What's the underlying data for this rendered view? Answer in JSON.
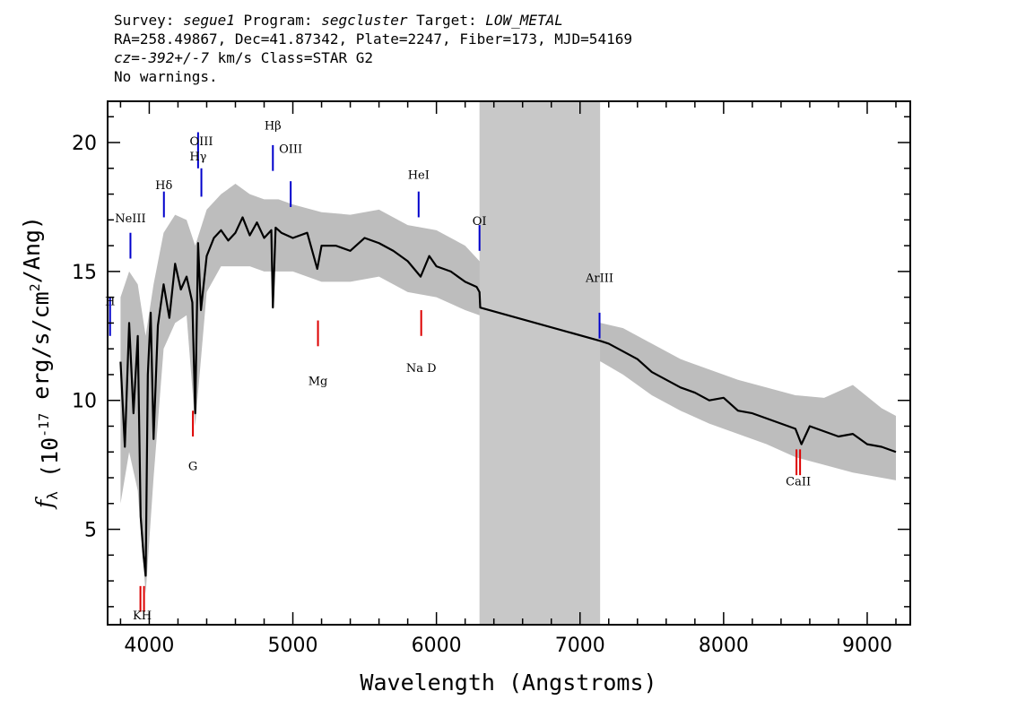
{
  "header": {
    "line1": {
      "survey_label": "Survey: ",
      "survey": "segue1",
      "program_label": " Program: ",
      "program": "segcluster",
      "target_label": " Target: ",
      "target": "LOW_METAL"
    },
    "line2": "RA=258.49867, Dec=41.87342, Plate=2247, Fiber=173, MJD=54169",
    "line3": {
      "cz": "cz=-392+/-7",
      "rest": " km/s Class=STAR G2"
    },
    "line4": "No warnings."
  },
  "chart_data": {
    "type": "line",
    "xlabel": "Wavelength (Angstroms)",
    "ylabel": "f_λ (10^-17 erg/s/cm^2/Ang)",
    "xlim": [
      3710,
      9300
    ],
    "ylim": [
      1.3,
      21.6
    ],
    "x_ticks": [
      4000,
      5000,
      6000,
      7000,
      8000,
      9000
    ],
    "y_ticks": [
      5,
      10,
      15,
      20
    ],
    "masked_region": [
      6300,
      7140
    ],
    "series": [
      {
        "style": "black-line",
        "x": [
          3800,
          3830,
          3860,
          3890,
          3920,
          3940,
          3960,
          3975,
          3990,
          4010,
          4030,
          4060,
          4100,
          4140,
          4180,
          4220,
          4260,
          4300,
          4320,
          4340,
          4360,
          4400,
          4450,
          4500,
          4550,
          4600,
          4650,
          4700,
          4750,
          4800,
          4850,
          4861,
          4880,
          4920,
          5000,
          5100,
          5170,
          5200,
          5300,
          5400,
          5500,
          5600,
          5700,
          5800,
          5890,
          5950,
          6000,
          6100,
          6200,
          6280,
          6300,
          6305,
          7145,
          7200,
          7300,
          7400,
          7500,
          7600,
          7700,
          7800,
          7900,
          8000,
          8100,
          8200,
          8300,
          8400,
          8500,
          8542,
          8600,
          8700,
          8800,
          8900,
          9000,
          9100,
          9200
        ],
        "y": [
          11.5,
          8.2,
          13.0,
          9.5,
          12.5,
          5.5,
          4.0,
          3.2,
          11.0,
          13.4,
          8.5,
          12.9,
          14.5,
          13.2,
          15.3,
          14.3,
          14.8,
          13.8,
          9.5,
          16.1,
          13.5,
          15.6,
          16.3,
          16.6,
          16.2,
          16.5,
          17.1,
          16.4,
          16.9,
          16.3,
          16.6,
          13.6,
          16.7,
          16.5,
          16.3,
          16.5,
          15.1,
          16.0,
          16.0,
          15.8,
          16.3,
          16.1,
          15.8,
          15.4,
          14.8,
          15.6,
          15.2,
          15.0,
          14.6,
          14.4,
          14.2,
          13.6,
          12.3,
          12.2,
          11.9,
          11.6,
          11.1,
          10.8,
          10.5,
          10.3,
          10.0,
          10.1,
          9.6,
          9.5,
          9.3,
          9.1,
          8.9,
          8.3,
          9.0,
          8.8,
          8.6,
          8.7,
          8.3,
          8.2,
          8.0
        ]
      },
      {
        "style": "grey-error-band",
        "x": [
          3800,
          3860,
          3920,
          3975,
          4030,
          4100,
          4180,
          4260,
          4320,
          4400,
          4500,
          4600,
          4700,
          4800,
          4900,
          5000,
          5200,
          5400,
          5600,
          5800,
          6000,
          6200,
          6300,
          7145,
          7300,
          7500,
          7700,
          7900,
          8100,
          8300,
          8500,
          8700,
          8900,
          9100,
          9200
        ],
        "low": [
          6.0,
          8.0,
          6.5,
          2.5,
          7.0,
          12.0,
          13.0,
          13.3,
          9.0,
          14.2,
          15.2,
          15.2,
          15.2,
          15.0,
          15.0,
          15.0,
          14.6,
          14.6,
          14.8,
          14.2,
          14.0,
          13.5,
          13.3,
          11.5,
          11.0,
          10.2,
          9.6,
          9.1,
          8.7,
          8.3,
          7.8,
          7.5,
          7.2,
          7.0,
          6.9
        ],
        "high": [
          14.0,
          15.0,
          14.5,
          12.5,
          14.5,
          16.5,
          17.2,
          17.0,
          16.0,
          17.4,
          18.0,
          18.4,
          18.0,
          17.8,
          17.8,
          17.6,
          17.3,
          17.2,
          17.4,
          16.8,
          16.6,
          16.0,
          15.4,
          13.0,
          12.8,
          12.2,
          11.6,
          11.2,
          10.8,
          10.5,
          10.2,
          10.1,
          10.6,
          9.7,
          9.4
        ]
      }
    ],
    "annotations": {
      "emission": [
        {
          "label": "H",
          "x": 3727,
          "y": 13.7,
          "y1": 12.5,
          "y2": 14.0
        },
        {
          "label": "NeIII",
          "x": 3869,
          "y": 16.9,
          "y1": 15.5,
          "y2": 16.5
        },
        {
          "label": "Hδ",
          "x": 4102,
          "y": 18.2,
          "y1": 17.1,
          "y2": 18.1
        },
        {
          "label": "Hγ",
          "x": 4340,
          "y": 19.3,
          "y1": 19.0,
          "y2": 20.4
        },
        {
          "label": "OIII",
          "x": 4363,
          "y": 19.9,
          "y1": 17.9,
          "y2": 19.0
        },
        {
          "label": "Hβ",
          "x": 4861,
          "y": 20.5,
          "y1": 18.9,
          "y2": 19.9
        },
        {
          "label": "OIII",
          "x": 4985,
          "y": 19.6,
          "y1": 17.5,
          "y2": 18.5
        },
        {
          "label": "HeI",
          "x": 5876,
          "y": 18.6,
          "y1": 17.1,
          "y2": 18.1
        },
        {
          "label": "OI",
          "x": 6300,
          "y": 16.8,
          "y1": 15.8,
          "y2": 16.8
        },
        {
          "label": "ArIII",
          "x": 7136,
          "y": 14.6,
          "y1": 12.4,
          "y2": 13.4
        }
      ],
      "absorption": [
        {
          "label": "KH",
          "x": 3951,
          "y": 1.5,
          "y1": 1.8,
          "y2": 2.8
        },
        {
          "label": "G",
          "x": 4304,
          "y": 7.3,
          "y1": 8.6,
          "y2": 9.6
        },
        {
          "label": "Mg",
          "x": 5175,
          "y": 10.6,
          "y1": 12.1,
          "y2": 13.1
        },
        {
          "label": "Na D",
          "x": 5894,
          "y": 11.1,
          "y1": 12.5,
          "y2": 13.5
        },
        {
          "label": "CaII",
          "x": 8520,
          "y": 6.7,
          "y1": 7.1,
          "y2": 8.1
        }
      ]
    }
  },
  "colors": {
    "emission": "#0000cc",
    "absorption": "#dd0000",
    "mask": "#c8c8c8",
    "error_band": "#bdbdbd",
    "flux": "#000000"
  }
}
